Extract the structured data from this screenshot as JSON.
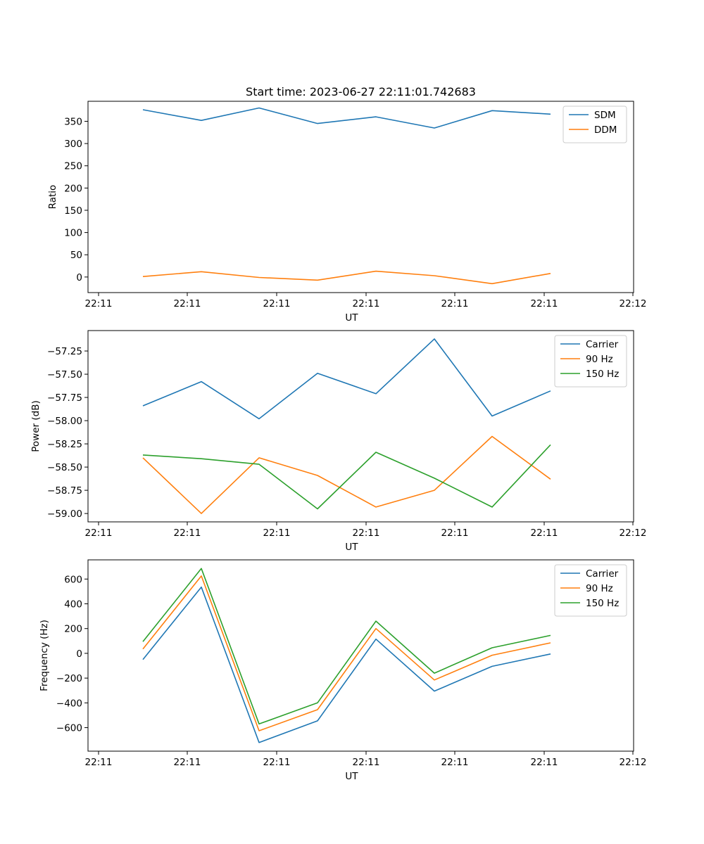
{
  "title": "Start time: 2023-06-27 22:11:01.742683",
  "colors": {
    "C0": "#1f77b4",
    "C1": "#ff7f0e",
    "C2": "#2ca02c"
  },
  "chart_data": [
    {
      "type": "line",
      "xlabel": "UT",
      "ylabel": "Ratio",
      "x_tick_labels": [
        "22:11",
        "22:11",
        "22:11",
        "22:11",
        "22:11",
        "22:11",
        "22:12"
      ],
      "y_ticks": [
        0,
        50,
        100,
        150,
        200,
        250,
        300,
        350
      ],
      "ylim": [
        -35,
        395
      ],
      "legend_location": "top-right",
      "series": [
        {
          "name": "SDM",
          "color": "#1f77b4",
          "values": [
            376,
            352,
            380,
            345,
            360,
            335,
            374,
            366
          ]
        },
        {
          "name": "DDM",
          "color": "#ff7f0e",
          "values": [
            1,
            12,
            -1,
            -7,
            13,
            3,
            -15,
            8
          ]
        }
      ]
    },
    {
      "type": "line",
      "xlabel": "UT",
      "ylabel": "Power (dB)",
      "x_tick_labels": [
        "22:11",
        "22:11",
        "22:11",
        "22:11",
        "22:11",
        "22:11",
        "22:12"
      ],
      "y_ticks": [
        -59.0,
        -58.75,
        -58.5,
        -58.25,
        -58.0,
        -57.75,
        -57.5,
        -57.25
      ],
      "y_tick_labels": [
        "−59.00",
        "−58.75",
        "−58.50",
        "−58.25",
        "−58.00",
        "−57.75",
        "−57.50",
        "−57.25"
      ],
      "ylim": [
        -59.09,
        -57.03
      ],
      "legend_location": "top-right",
      "series": [
        {
          "name": "Carrier",
          "color": "#1f77b4",
          "values": [
            -57.84,
            -57.58,
            -57.98,
            -57.49,
            -57.71,
            -57.12,
            -57.95,
            -57.68
          ]
        },
        {
          "name": "90 Hz",
          "color": "#ff7f0e",
          "values": [
            -58.4,
            -59.0,
            -58.4,
            -58.59,
            -58.93,
            -58.75,
            -58.17,
            -58.63
          ]
        },
        {
          "name": "150 Hz",
          "color": "#2ca02c",
          "values": [
            -58.37,
            -58.41,
            -58.47,
            -58.95,
            -58.34,
            -58.62,
            -58.93,
            -58.26
          ]
        }
      ]
    },
    {
      "type": "line",
      "xlabel": "UT",
      "ylabel": "Frequency (Hz)",
      "x_tick_labels": [
        "22:11",
        "22:11",
        "22:11",
        "22:11",
        "22:11",
        "22:11",
        "22:12"
      ],
      "y_ticks": [
        -600,
        -400,
        -200,
        0,
        200,
        400,
        600
      ],
      "y_tick_labels": [
        "−600",
        "−400",
        "−200",
        "0",
        "200",
        "400",
        "600"
      ],
      "ylim": [
        -790,
        755
      ],
      "legend_location": "top-right",
      "series": [
        {
          "name": "Carrier",
          "color": "#1f77b4",
          "values": [
            -50,
            535,
            -720,
            -545,
            115,
            -305,
            -105,
            -5
          ]
        },
        {
          "name": "90 Hz",
          "color": "#ff7f0e",
          "values": [
            35,
            625,
            -625,
            -455,
            200,
            -215,
            -15,
            85
          ]
        },
        {
          "name": "150 Hz",
          "color": "#2ca02c",
          "values": [
            95,
            685,
            -570,
            -400,
            260,
            -160,
            45,
            145
          ]
        }
      ]
    }
  ]
}
